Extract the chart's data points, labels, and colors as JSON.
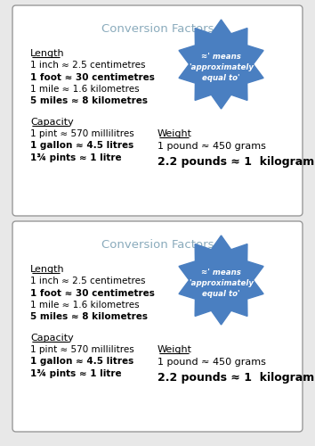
{
  "title": "Conversion Factors",
  "title_color": "#8aabbc",
  "background": "#e8e8e8",
  "card_bg": "#ffffff",
  "card_border": "#999999",
  "star_color": "#4a7fc1",
  "star_text": [
    "≈' means",
    "'approximately",
    "equal to'"
  ],
  "length_header": "Length",
  "capacity_header": "Capacity",
  "weight_header": "Weight",
  "length_lines": [
    [
      "1 inch ≈ 2.5 centimetres",
      false
    ],
    [
      "1 foot ≈ 30 centimetres",
      true
    ],
    [
      "1 mile ≈ 1.6 kilometres",
      false
    ],
    [
      "5 miles ≈ 8 kilometres",
      true
    ]
  ],
  "capacity_lines": [
    [
      "1 pint ≈ 570 millilitres",
      false
    ],
    [
      "1 gallon ≈ 4.5 litres",
      true
    ],
    [
      "1¾ pints ≈ 1 litre",
      true
    ]
  ],
  "weight_line_normal": "1 pound ≈ 450 grams",
  "weight_line_bold": "2.2 pounds ≈ 1  kilogram"
}
